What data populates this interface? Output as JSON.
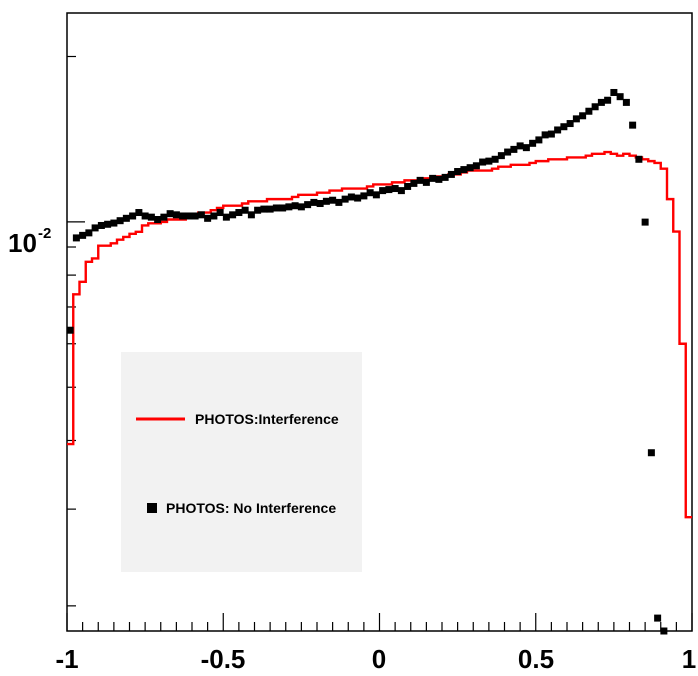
{
  "chart_data": {
    "type": "line",
    "title": "",
    "xlabel": "",
    "ylabel": "",
    "xlim": [
      -1,
      1
    ],
    "ylim": [
      0.0018,
      0.024
    ],
    "yscale": "log",
    "grid": false,
    "legend_position": "left",
    "x_ticks": [
      {
        "value": -1,
        "label": "-1"
      },
      {
        "value": -0.5,
        "label": "-0.5"
      },
      {
        "value": 0,
        "label": "0"
      },
      {
        "value": 0.5,
        "label": "0.5"
      },
      {
        "value": 1,
        "label": "1"
      }
    ],
    "y_tick_label": {
      "value": 0.01,
      "base": "10",
      "exponent": "-2"
    },
    "series": [
      {
        "name": "PHOTOS:Interference",
        "style": "step",
        "color": "#ff0000",
        "bin_width": 0.02,
        "bin_start": -1,
        "values": [
          0.00394,
          0.00738,
          0.00778,
          0.00846,
          0.00858,
          0.00905,
          0.00905,
          0.00914,
          0.00928,
          0.00939,
          0.00951,
          0.00959,
          0.00985,
          0.00994,
          0.00994,
          0.01,
          0.0101,
          0.0101,
          0.0101,
          0.0102,
          0.0103,
          0.0104,
          0.0104,
          0.0105,
          0.0106,
          0.0107,
          0.0107,
          0.0107,
          0.0108,
          0.0109,
          0.0109,
          0.0109,
          0.011,
          0.011,
          0.011,
          0.011,
          0.0111,
          0.0112,
          0.0112,
          0.0112,
          0.0113,
          0.0113,
          0.0114,
          0.0114,
          0.0115,
          0.0115,
          0.0115,
          0.0115,
          0.0116,
          0.0117,
          0.0117,
          0.0117,
          0.0118,
          0.0118,
          0.0119,
          0.0119,
          0.0119,
          0.012,
          0.012,
          0.0121,
          0.0121,
          0.0122,
          0.0122,
          0.0123,
          0.0124,
          0.0124,
          0.0124,
          0.0124,
          0.0125,
          0.0126,
          0.0126,
          0.0127,
          0.0127,
          0.0127,
          0.0128,
          0.0129,
          0.0129,
          0.013,
          0.013,
          0.013,
          0.0131,
          0.0131,
          0.0131,
          0.0132,
          0.0133,
          0.0133,
          0.0134,
          0.0133,
          0.0132,
          0.0133,
          0.0132,
          0.0131,
          0.013,
          0.0129,
          0.0128,
          0.0125,
          0.011,
          0.0096,
          0.006,
          0.0029
        ]
      },
      {
        "name": "PHOTOS: No Interference",
        "style": "markers",
        "color": "#000000",
        "x": [
          -0.99,
          -0.97,
          -0.95,
          -0.93,
          -0.91,
          -0.89,
          -0.87,
          -0.85,
          -0.83,
          -0.81,
          -0.79,
          -0.77,
          -0.75,
          -0.73,
          -0.71,
          -0.69,
          -0.67,
          -0.65,
          -0.63,
          -0.61,
          -0.59,
          -0.57,
          -0.55,
          -0.53,
          -0.51,
          -0.49,
          -0.47,
          -0.45,
          -0.43,
          -0.41,
          -0.39,
          -0.37,
          -0.35,
          -0.33,
          -0.31,
          -0.29,
          -0.27,
          -0.25,
          -0.23,
          -0.21,
          -0.19,
          -0.17,
          -0.15,
          -0.13,
          -0.11,
          -0.09,
          -0.07,
          -0.05,
          -0.03,
          -0.01,
          0.01,
          0.03,
          0.05,
          0.07,
          0.09,
          0.11,
          0.13,
          0.15,
          0.17,
          0.19,
          0.21,
          0.23,
          0.25,
          0.27,
          0.29,
          0.31,
          0.33,
          0.35,
          0.37,
          0.39,
          0.41,
          0.43,
          0.45,
          0.47,
          0.49,
          0.51,
          0.53,
          0.55,
          0.57,
          0.59,
          0.61,
          0.63,
          0.65,
          0.67,
          0.69,
          0.71,
          0.73,
          0.75,
          0.77,
          0.79,
          0.81,
          0.83,
          0.85,
          0.87,
          0.89,
          0.91,
          0.93,
          0.95,
          0.97,
          0.99
        ],
        "y": [
          0.00635,
          0.00935,
          0.00945,
          0.00955,
          0.00975,
          0.00985,
          0.0099,
          0.00995,
          0.01005,
          0.01015,
          0.01025,
          0.0104,
          0.01025,
          0.0102,
          0.0101,
          0.0102,
          0.01035,
          0.0103,
          0.01025,
          0.01025,
          0.01025,
          0.0103,
          0.01015,
          0.01025,
          0.0104,
          0.0102,
          0.0103,
          0.0104,
          0.0105,
          0.0103,
          0.0105,
          0.01055,
          0.01055,
          0.0106,
          0.0106,
          0.01065,
          0.0107,
          0.01065,
          0.01075,
          0.01085,
          0.0108,
          0.0109,
          0.01095,
          0.01085,
          0.011,
          0.0111,
          0.01105,
          0.01115,
          0.0113,
          0.0112,
          0.0114,
          0.01145,
          0.0115,
          0.0114,
          0.0116,
          0.01175,
          0.0119,
          0.0118,
          0.012,
          0.01195,
          0.01205,
          0.0122,
          0.01235,
          0.01245,
          0.01255,
          0.01265,
          0.01285,
          0.0129,
          0.013,
          0.0132,
          0.0134,
          0.01355,
          0.01375,
          0.01365,
          0.0139,
          0.0141,
          0.0144,
          0.01445,
          0.0147,
          0.0149,
          0.0151,
          0.0154,
          0.0156,
          0.0159,
          0.0162,
          0.0165,
          0.01665,
          0.0172,
          0.0169,
          0.0165,
          0.015,
          0.013,
          0.00999,
          0.0038,
          0.0019,
          0.0018,
          0.00175,
          0.0017,
          0.00165,
          0.0016
        ]
      }
    ]
  },
  "legend": {
    "entries": [
      {
        "label": "PHOTOS:Interference",
        "symbol": "line",
        "color": "#ff0000"
      },
      {
        "label": "PHOTOS: No Interference",
        "symbol": "square",
        "color": "#000000"
      }
    ],
    "background": "#f2f2f2"
  }
}
